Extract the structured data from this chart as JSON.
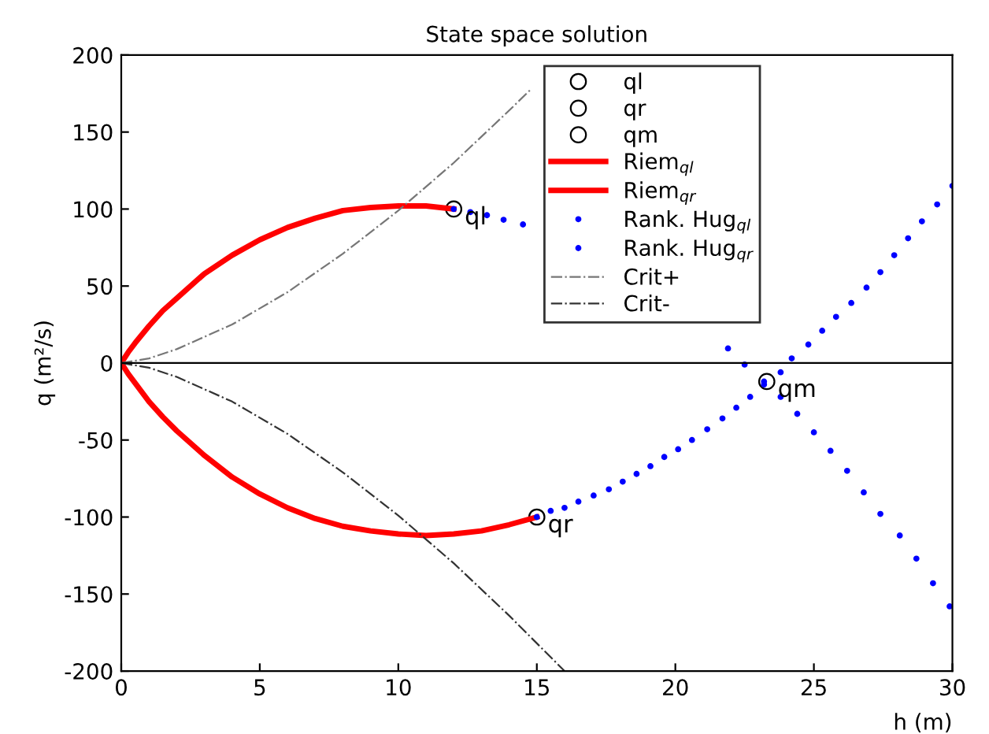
{
  "chart_data": {
    "type": "line",
    "title": "State space solution",
    "xlabel": "h (m)",
    "ylabel": "q (m²/s)",
    "xlim": [
      0,
      30
    ],
    "ylim": [
      -200,
      200
    ],
    "xticks": [
      0,
      5,
      10,
      15,
      20,
      25,
      30
    ],
    "yticks": [
      -200,
      -150,
      -100,
      -50,
      0,
      50,
      100,
      150,
      200
    ],
    "grid": false,
    "legend": "top",
    "ref_lines": [
      {
        "axis": "y",
        "value": 0,
        "color": "#000000"
      }
    ],
    "annotations": [
      {
        "text": "ql",
        "x": 12,
        "y": 100
      },
      {
        "text": "qr",
        "x": 15,
        "y": -100
      },
      {
        "text": "qm",
        "x": 23.3,
        "y": -12
      }
    ],
    "series": [
      {
        "name": "ql",
        "type": "scatter",
        "marker": "circle",
        "color": "#000000",
        "x": [
          12
        ],
        "values": [
          100
        ]
      },
      {
        "name": "qr",
        "type": "scatter",
        "marker": "circle",
        "color": "#000000",
        "x": [
          15
        ],
        "values": [
          -100
        ]
      },
      {
        "name": "qm",
        "type": "scatter",
        "marker": "circle",
        "color": "#000000",
        "x": [
          23.3
        ],
        "values": [
          -12
        ]
      },
      {
        "name": "Riem$_{ql}$",
        "color": "#ff0000",
        "x": [
          0,
          0.25,
          0.5,
          1,
          1.5,
          2,
          3,
          4,
          5,
          6,
          7,
          8,
          9,
          10,
          11,
          12
        ],
        "values": [
          0,
          7,
          13,
          24,
          34,
          42,
          58,
          70,
          80,
          88,
          94,
          99,
          101,
          102,
          102,
          100
        ]
      },
      {
        "name": "Riem$_{qr}$",
        "color": "#ff0000",
        "x": [
          0,
          0.25,
          0.5,
          1,
          1.5,
          2,
          3,
          4,
          5,
          6,
          7,
          8,
          9,
          10,
          11,
          12,
          13,
          14,
          15
        ],
        "values": [
          0,
          -7,
          -13,
          -25,
          -35,
          -44,
          -60,
          -74,
          -85,
          -94,
          -101,
          -106,
          -109,
          -111,
          -112,
          -111,
          -109,
          -105,
          -100
        ]
      },
      {
        "name": "Rank. Hug$_{ql}$",
        "type": "scatter",
        "marker": "dot",
        "color": "#0000ff",
        "x": [
          12,
          12.6,
          13.2,
          13.8,
          14.5,
          15.1,
          15.7,
          16.3,
          17,
          17.6,
          18.2,
          18.8,
          19.4,
          20.1,
          20.7,
          21.3,
          21.9,
          22.5,
          23.2,
          23.8,
          24.4,
          25,
          25.6,
          26.2,
          26.8,
          27.4,
          28.1,
          28.7,
          29.3,
          29.9
        ],
        "values": [
          100,
          98,
          96,
          93,
          90,
          null,
          null,
          null,
          null,
          null,
          null,
          null,
          null,
          null,
          null,
          null,
          9.5,
          -1,
          -12,
          -22,
          -33,
          -45,
          -57,
          -70,
          -84,
          -98,
          -112,
          -127,
          -143,
          -158
        ]
      },
      {
        "name": "Rank. Hug$_{qr}$",
        "type": "scatter",
        "marker": "dot",
        "color": "#0000ff",
        "x": [
          15,
          15.5,
          16,
          16.5,
          17.05,
          17.6,
          18.1,
          18.6,
          19.1,
          19.6,
          20.1,
          20.6,
          21.15,
          21.7,
          22.2,
          22.7,
          23.2,
          23.8,
          24.2,
          24.8,
          25.3,
          25.8,
          26.35,
          26.9,
          27.4,
          27.9,
          28.4,
          28.9,
          29.45,
          30
        ],
        "values": [
          -100,
          -96,
          -94,
          -90,
          -86,
          -82,
          -77,
          -72,
          -67,
          -61,
          -56,
          -50,
          -43,
          -36,
          -29,
          -22,
          -14,
          -6,
          3,
          12,
          21,
          30,
          39,
          49,
          59,
          70,
          81,
          92,
          103,
          115
        ]
      },
      {
        "name": "Crit+",
        "line_style": "dashdot",
        "color": "#777777",
        "x": [
          0,
          1,
          2,
          4,
          6,
          8,
          10,
          12,
          14,
          14.8
        ],
        "values": [
          0,
          3,
          9,
          25,
          46,
          71,
          99,
          130,
          164,
          178
        ]
      },
      {
        "name": "Crit-",
        "line_style": "dashdot",
        "color": "#333333",
        "x": [
          0,
          1,
          2,
          4,
          6,
          8,
          10,
          12,
          14,
          16
        ],
        "values": [
          0,
          -3,
          -9,
          -25,
          -46,
          -71,
          -99,
          -130,
          -164,
          -200
        ]
      }
    ]
  }
}
